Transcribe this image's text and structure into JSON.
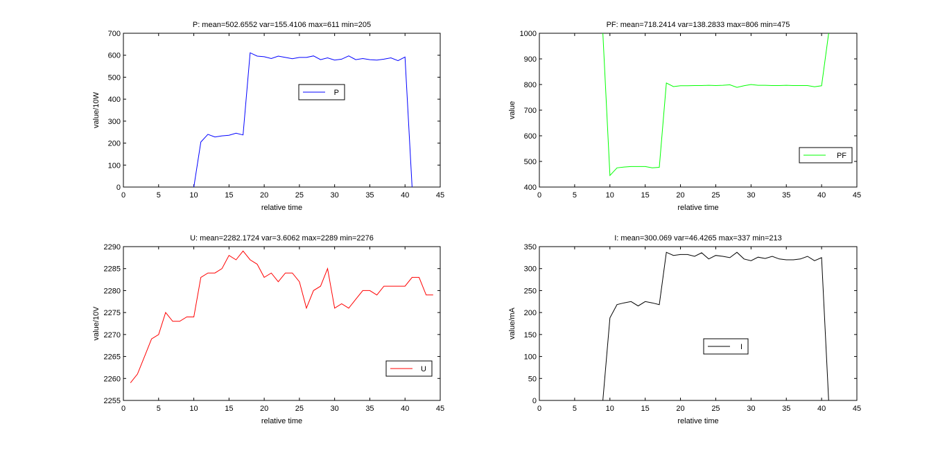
{
  "chart_data": [
    {
      "type": "line",
      "title": "P: mean=502.6552 var=155.4106 max=611 min=205",
      "xlabel": "relative time",
      "ylabel": "value/10W",
      "xlim": [
        0,
        45
      ],
      "ylim": [
        0,
        700
      ],
      "xticks": [
        0,
        5,
        10,
        15,
        20,
        25,
        30,
        35,
        40,
        45
      ],
      "yticks": [
        0,
        100,
        200,
        300,
        400,
        500,
        600,
        700
      ],
      "grid": false,
      "legend_position": "center",
      "series": [
        {
          "name": "P",
          "color": "#0000ff",
          "x": [
            10,
            11,
            12,
            13,
            14,
            15,
            16,
            17,
            18,
            19,
            20,
            21,
            22,
            23,
            24,
            25,
            26,
            27,
            28,
            29,
            30,
            31,
            32,
            33,
            34,
            35,
            36,
            37,
            38,
            39,
            40,
            41
          ],
          "y": [
            0,
            205,
            240,
            228,
            233,
            236,
            245,
            237,
            611,
            596,
            593,
            585,
            596,
            590,
            584,
            590,
            590,
            597,
            580,
            588,
            578,
            582,
            597,
            580,
            585,
            580,
            578,
            582,
            588,
            575,
            592,
            0
          ]
        }
      ]
    },
    {
      "type": "line",
      "title": "PF: mean=718.2414 var=138.2833 max=806 min=475",
      "xlabel": "relative time",
      "ylabel": "value",
      "xlim": [
        0,
        45
      ],
      "ylim": [
        400,
        1000
      ],
      "xticks": [
        0,
        5,
        10,
        15,
        20,
        25,
        30,
        35,
        40,
        45
      ],
      "yticks": [
        400,
        500,
        600,
        700,
        800,
        900,
        1000
      ],
      "grid": false,
      "legend_position": "bottom-right",
      "series": [
        {
          "name": "PF",
          "color": "#00ff00",
          "x": [
            9,
            10,
            11,
            12,
            13,
            14,
            15,
            16,
            17,
            18,
            19,
            20,
            21,
            22,
            23,
            24,
            25,
            26,
            27,
            28,
            29,
            30,
            31,
            32,
            33,
            34,
            35,
            36,
            37,
            38,
            39,
            40,
            41
          ],
          "y": [
            1000,
            445,
            475,
            478,
            480,
            480,
            480,
            475,
            477,
            806,
            792,
            795,
            795,
            796,
            796,
            797,
            796,
            797,
            799,
            789,
            795,
            800,
            797,
            797,
            796,
            796,
            797,
            796,
            796,
            796,
            791,
            795,
            1000
          ]
        }
      ]
    },
    {
      "type": "line",
      "title": "U: mean=2282.1724 var=3.6062 max=2289 min=2276",
      "xlabel": "relative time",
      "ylabel": "value/10V",
      "xlim": [
        0,
        45
      ],
      "ylim": [
        2255,
        2290
      ],
      "xticks": [
        0,
        5,
        10,
        15,
        20,
        25,
        30,
        35,
        40,
        45
      ],
      "yticks": [
        2255,
        2260,
        2265,
        2270,
        2275,
        2280,
        2285,
        2290
      ],
      "grid": false,
      "legend_position": "bottom-right",
      "series": [
        {
          "name": "U",
          "color": "#ff0000",
          "x": [
            1,
            2,
            3,
            4,
            5,
            6,
            7,
            8,
            9,
            10,
            11,
            12,
            13,
            14,
            15,
            16,
            17,
            18,
            19,
            20,
            21,
            22,
            23,
            24,
            25,
            26,
            27,
            28,
            29,
            30,
            31,
            32,
            33,
            34,
            35,
            36,
            37,
            38,
            39,
            40,
            41,
            42,
            43,
            44
          ],
          "y": [
            2259,
            2261,
            2265,
            2269,
            2270,
            2275,
            2273,
            2273,
            2274,
            2274,
            2283,
            2284,
            2284,
            2285,
            2288,
            2287,
            2289,
            2287,
            2286,
            2283,
            2284,
            2282,
            2284,
            2284,
            2282,
            2276,
            2280,
            2281,
            2285,
            2276,
            2277,
            2276,
            2278,
            2280,
            2280,
            2279,
            2281,
            2281,
            2281,
            2281,
            2283,
            2283,
            2279,
            2279
          ]
        }
      ]
    },
    {
      "type": "line",
      "title": "I: mean=300.069 var=46.4265 max=337 min=213",
      "xlabel": "relative time",
      "ylabel": "value/mA",
      "xlim": [
        0,
        45
      ],
      "ylim": [
        0,
        350
      ],
      "xticks": [
        0,
        5,
        10,
        15,
        20,
        25,
        30,
        35,
        40,
        45
      ],
      "yticks": [
        0,
        50,
        100,
        150,
        200,
        250,
        300,
        350
      ],
      "grid": false,
      "legend_position": "center",
      "series": [
        {
          "name": "I",
          "color": "#000000",
          "x": [
            9,
            10,
            11,
            12,
            13,
            14,
            15,
            16,
            17,
            18,
            19,
            20,
            21,
            22,
            23,
            24,
            25,
            26,
            27,
            28,
            29,
            30,
            31,
            32,
            33,
            34,
            35,
            36,
            37,
            38,
            39,
            40,
            41
          ],
          "y": [
            0,
            188,
            218,
            222,
            225,
            215,
            225,
            222,
            218,
            337,
            330,
            332,
            332,
            328,
            336,
            322,
            330,
            328,
            325,
            337,
            322,
            318,
            326,
            323,
            328,
            322,
            320,
            320,
            322,
            328,
            318,
            325,
            0
          ]
        }
      ]
    }
  ]
}
